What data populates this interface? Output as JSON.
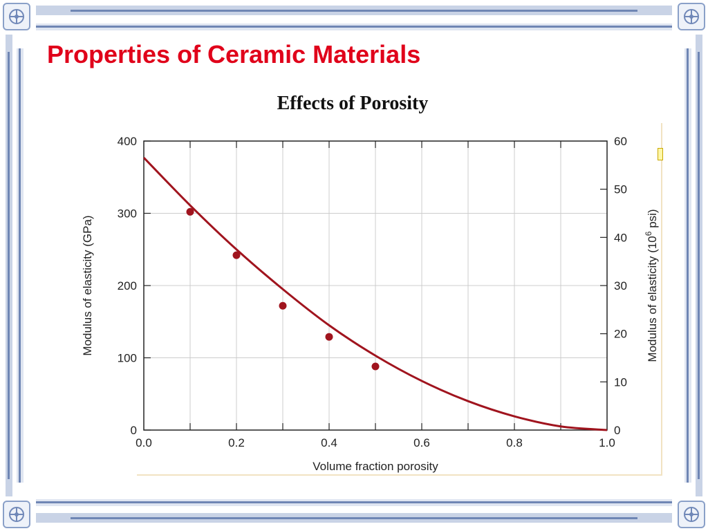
{
  "slide": {
    "title": "Properties of Ceramic Materials"
  },
  "colors": {
    "title": "#e0001a",
    "curve": "#a0141e",
    "points": "#a0141e",
    "grid": "#cccccc",
    "frame": "#6f86b4"
  },
  "chart_data": {
    "type": "scatter",
    "title": "Effects of Porosity",
    "xlabel": "Volume fraction porosity",
    "ylabel": "Modulus of elasticity (GPa)",
    "ylabel_right": "Modulus of elasticity (10",
    "ylabel_right_sup": "6",
    "ylabel_right_tail": " psi)",
    "xlim": [
      0.0,
      1.0
    ],
    "ylim": [
      0,
      400
    ],
    "ylim_right": [
      0,
      60
    ],
    "x_ticks": [
      "0.0",
      "0.2",
      "0.4",
      "0.6",
      "0.8",
      "1.0"
    ],
    "y_ticks": [
      "0",
      "100",
      "200",
      "300",
      "400"
    ],
    "y_right_ticks": [
      "0",
      "10",
      "20",
      "30",
      "40",
      "50",
      "60"
    ],
    "grid": true,
    "series": [
      {
        "kind": "points",
        "x": [
          0.1,
          0.2,
          0.3,
          0.4,
          0.5
        ],
        "y": [
          302,
          242,
          172,
          129,
          88
        ]
      },
      {
        "kind": "curve",
        "x": [
          0.0,
          0.1,
          0.2,
          0.3,
          0.4,
          0.5,
          0.6,
          0.7,
          0.8,
          0.9,
          1.0
        ],
        "y": [
          377,
          311,
          250,
          195,
          145,
          103,
          68,
          40,
          19,
          5,
          0
        ]
      }
    ]
  }
}
